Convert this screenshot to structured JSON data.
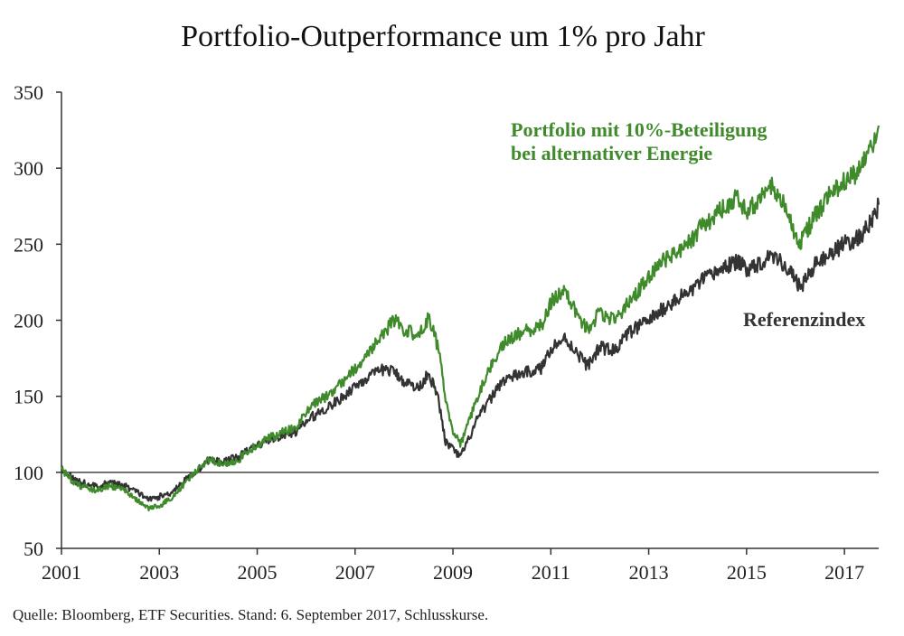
{
  "chart_data": {
    "type": "line",
    "title": "Portfolio-Outperformance um 1% pro Jahr",
    "xlabel": "",
    "ylabel": "",
    "x_ticks": [
      "2001",
      "2003",
      "2005",
      "2007",
      "2009",
      "2011",
      "2013",
      "2015",
      "2017"
    ],
    "y_ticks": [
      50,
      100,
      150,
      200,
      250,
      300,
      350
    ],
    "xlim": [
      2001.0,
      2017.7
    ],
    "ylim": [
      50,
      350
    ],
    "reference_line": 100,
    "grid": false,
    "x": [
      2001.0,
      2001.3,
      2001.7,
      2002.0,
      2002.3,
      2002.6,
      2002.8,
      2003.0,
      2003.2,
      2003.5,
      2003.8,
      2004.0,
      2004.3,
      2004.6,
      2004.9,
      2005.2,
      2005.5,
      2005.8,
      2006.1,
      2006.4,
      2006.7,
      2007.0,
      2007.3,
      2007.6,
      2007.8,
      2008.0,
      2008.3,
      2008.5,
      2008.7,
      2008.85,
      2009.0,
      2009.15,
      2009.3,
      2009.5,
      2009.8,
      2010.0,
      2010.4,
      2010.8,
      2011.0,
      2011.3,
      2011.6,
      2011.75,
      2012.0,
      2012.3,
      2012.6,
      2013.0,
      2013.4,
      2013.8,
      2014.1,
      2014.4,
      2014.6,
      2014.8,
      2015.0,
      2015.3,
      2015.5,
      2015.8,
      2016.0,
      2016.1,
      2016.4,
      2016.7,
      2017.0,
      2017.3,
      2017.6,
      2017.7
    ],
    "series": [
      {
        "name": "Portfolio mit 10%-Beteiligung bei alternativer Energie",
        "color": "#3f8a2b",
        "label_lines": [
          "Portfolio mit 10%-Beteiligung",
          "bei alternativer Energie"
        ],
        "values": [
          102,
          92,
          88,
          91,
          88,
          80,
          76,
          78,
          82,
          92,
          102,
          108,
          106,
          108,
          116,
          122,
          126,
          130,
          143,
          150,
          158,
          168,
          180,
          192,
          200,
          194,
          190,
          202,
          182,
          148,
          128,
          118,
          130,
          150,
          172,
          184,
          192,
          196,
          212,
          220,
          200,
          194,
          205,
          200,
          212,
          228,
          242,
          250,
          262,
          270,
          276,
          282,
          272,
          280,
          288,
          274,
          255,
          252,
          268,
          282,
          292,
          298,
          318,
          328
        ]
      },
      {
        "name": "Referenzindex",
        "color": "#333333",
        "label_lines": [
          "Referenzindex"
        ],
        "values": [
          103,
          94,
          91,
          93,
          91,
          86,
          82,
          84,
          86,
          94,
          102,
          108,
          107,
          110,
          116,
          121,
          124,
          127,
          136,
          142,
          148,
          157,
          163,
          168,
          166,
          160,
          155,
          166,
          148,
          120,
          115,
          110,
          120,
          135,
          150,
          160,
          165,
          168,
          182,
          188,
          176,
          170,
          182,
          180,
          192,
          200,
          210,
          218,
          226,
          232,
          236,
          238,
          234,
          238,
          244,
          236,
          226,
          222,
          236,
          244,
          250,
          254,
          268,
          276
        ]
      }
    ]
  },
  "source_note": "Quelle: Bloomberg, ETF Securities. Stand: 6. September 2017, Schlusskurse."
}
